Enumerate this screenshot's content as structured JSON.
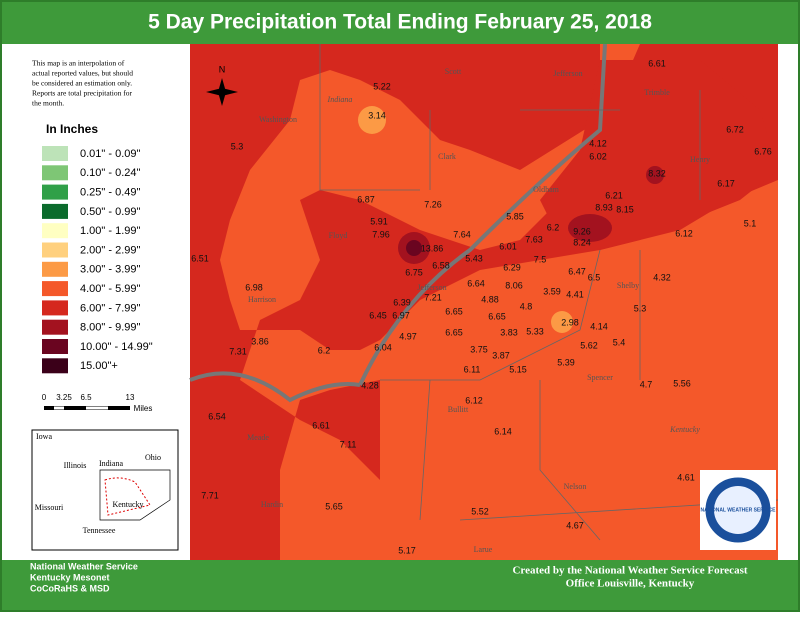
{
  "title": "5 Day Precipitation Total Ending February 25, 2018",
  "note": [
    "This map is an interpolation of",
    "actual reported values, but should",
    "be considered an estimation only.",
    "Reports are total precipitation for",
    "the month."
  ],
  "legend_title": "In Inches",
  "legend": [
    {
      "label": "0.01\" - 0.09\"",
      "color": "#bde3b8"
    },
    {
      "label": "0.10\" - 0.24\"",
      "color": "#7ec675"
    },
    {
      "label": "0.25\" - 0.49\"",
      "color": "#30a048"
    },
    {
      "label": "0.50\" - 0.99\"",
      "color": "#0b6b2c"
    },
    {
      "label": "1.00\" - 1.99\"",
      "color": "#ffffc2"
    },
    {
      "label": "2.00\" - 2.99\"",
      "color": "#ffd07e"
    },
    {
      "label": "3.00\" - 3.99\"",
      "color": "#fc9a45"
    },
    {
      "label": "4.00\" - 5.99\"",
      "color": "#f4582a"
    },
    {
      "label": "6.00\" - 7.99\"",
      "color": "#d5281e"
    },
    {
      "label": "8.00\" - 9.99\"",
      "color": "#a3121f"
    },
    {
      "label": "10.00\" - 14.99\"",
      "color": "#6a0520"
    },
    {
      "label": "15.00\"+",
      "color": "#3b0019"
    }
  ],
  "scale": {
    "labels": [
      "0",
      "3.25",
      "6.5",
      "13"
    ],
    "unit": "Miles"
  },
  "north": "N",
  "stations": [
    5.22,
    3.14,
    5.3,
    6.61,
    6.72,
    6.76,
    4.12,
    6.02,
    8.32,
    6.17,
    6.87,
    7.26,
    6.21,
    8.93,
    8.15,
    5.85,
    6.2,
    9.26,
    8.24,
    5.91,
    7.96,
    7.64,
    7.63,
    6.12,
    5.1,
    13.86,
    6.01,
    6.58,
    5.43,
    7.5,
    6.51,
    6.29,
    6.47,
    6.5,
    4.32,
    6.75,
    6.98,
    6.64,
    8.06,
    3.59,
    4.41,
    5.3,
    6.39,
    7.21,
    4.88,
    4.8,
    6.45,
    6.97,
    6.65,
    6.65,
    2.98,
    4.14,
    3.86,
    4.97,
    6.65,
    3.83,
    5.33,
    5.62,
    5.4,
    7.31,
    6.2,
    6.04,
    3.75,
    3.87,
    5.39,
    6.11,
    5.15,
    4.7,
    5.56,
    4.28,
    6.12,
    6.54,
    6.61,
    6.14,
    7.11,
    4.61,
    7.71,
    5.65,
    5.52,
    4.67,
    5.17
  ],
  "places": [
    "Scott",
    "Jefferson",
    "Trimble",
    "Indiana",
    "Washington",
    "Clark",
    "Henry",
    "Oldham",
    "Floyd",
    "Harrison",
    "Jefferson",
    "Shelby",
    "Spencer",
    "Bullitt",
    "Kentucky",
    "Meade",
    "Nelson",
    "Hardin",
    "Larue"
  ],
  "inset": [
    "Iowa",
    "Illinois",
    "Indiana",
    "Ohio",
    "Missouri",
    "Kentucky",
    "Tennessee"
  ],
  "footer_left": [
    "National Weather Service",
    "Kentucky Mesonet",
    "CoCoRaHS & MSD"
  ],
  "footer_right": [
    "Created by the National Weather Service Forecast",
    "Office Louisville, Kentucky"
  ],
  "logo": "NATIONAL WEATHER SERVICE"
}
